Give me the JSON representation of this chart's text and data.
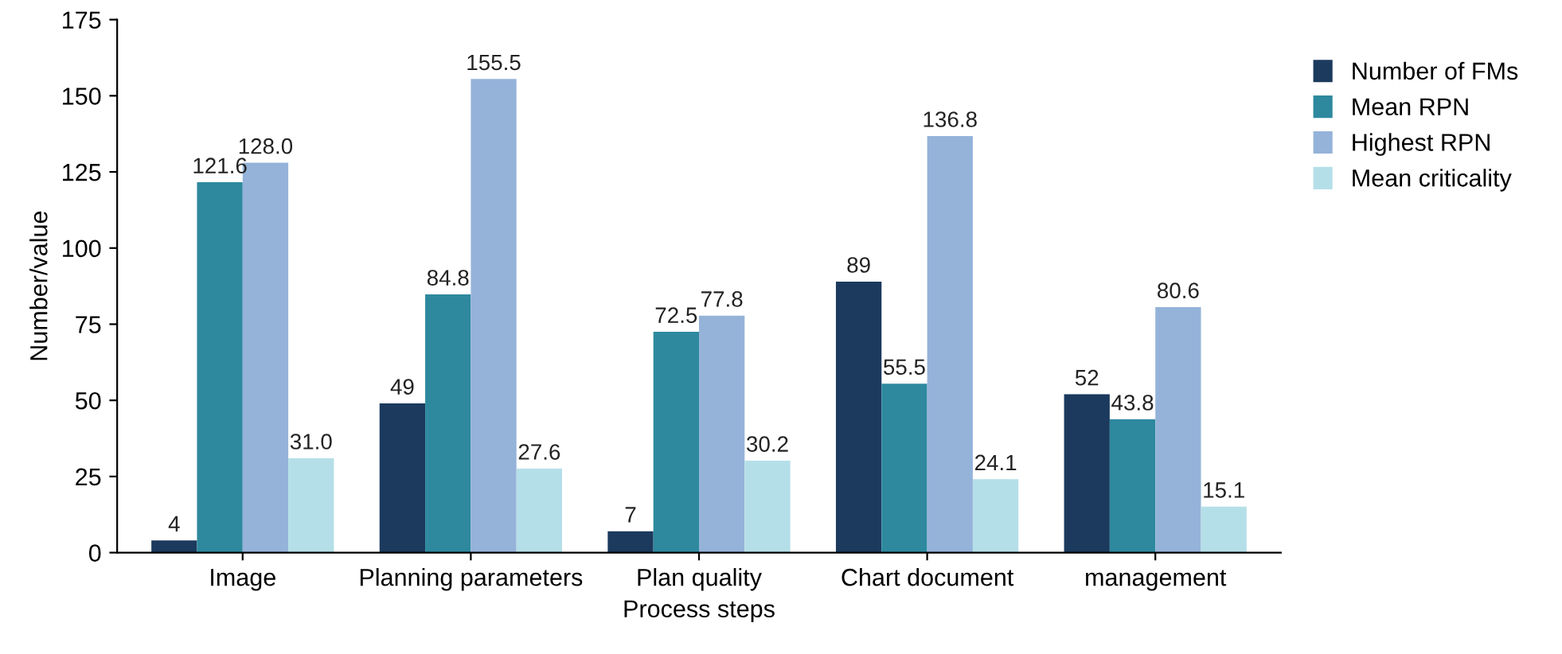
{
  "chart_data": {
    "type": "bar",
    "xlabel": "Process steps",
    "ylabel": "Number/value",
    "categories": [
      "Image",
      "Planning parameters",
      "Plan quality",
      "Chart document",
      "management"
    ],
    "series": [
      {
        "name": "Number of FMs",
        "color": "#1b3a5e",
        "values": [
          4,
          49,
          7,
          89,
          52
        ],
        "value_labels": [
          "4",
          "49",
          "7",
          "89",
          "52"
        ]
      },
      {
        "name": "Mean RPN",
        "color": "#2e899e",
        "values": [
          121.6,
          84.8,
          72.5,
          55.5,
          43.8
        ],
        "value_labels": [
          "121.6",
          "84.8",
          "72.5",
          "55.5",
          "43.8"
        ]
      },
      {
        "name": "Highest RPN",
        "color": "#95b3d9",
        "values": [
          128.0,
          155.5,
          77.8,
          136.8,
          80.6
        ],
        "value_labels": [
          "128.0",
          "155.5",
          "77.8",
          "136.8",
          "80.6"
        ]
      },
      {
        "name": "Mean criticality",
        "color": "#b5dfe8",
        "values": [
          31.0,
          27.6,
          30.2,
          24.1,
          15.1
        ],
        "value_labels": [
          "31.0",
          "27.6",
          "30.2",
          "24.1",
          "15.1"
        ]
      }
    ],
    "ylim": [
      0,
      175
    ],
    "yticks": [
      0,
      25,
      50,
      75,
      100,
      125,
      150,
      175
    ],
    "grid": false,
    "legend": "right"
  }
}
